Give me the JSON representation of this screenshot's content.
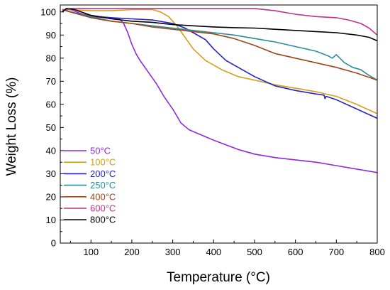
{
  "chart_data": {
    "type": "line",
    "title": "",
    "xlabel": "Temperature (°C)",
    "ylabel": "Weight Loss (%)",
    "xlim": [
      25,
      800
    ],
    "ylim": [
      0,
      103
    ],
    "x_ticks": [
      100,
      200,
      300,
      400,
      500,
      600,
      700,
      800
    ],
    "y_ticks": [
      0,
      10,
      20,
      30,
      40,
      50,
      60,
      70,
      80,
      90,
      100
    ],
    "grid": false,
    "legend_position": "lower-left",
    "series": [
      {
        "name": "50°C",
        "color": "#8B2BE2",
        "x": [
          30,
          50,
          80,
          120,
          150,
          170,
          180,
          190,
          200,
          210,
          220,
          240,
          260,
          280,
          300,
          320,
          330,
          340,
          360,
          380,
          400,
          430,
          460,
          500,
          550,
          600,
          650,
          700,
          750,
          800
        ],
        "y": [
          101,
          101,
          99,
          98,
          97.5,
          97,
          95,
          91,
          86,
          82,
          79,
          74,
          69,
          63,
          58,
          52,
          50.5,
          49,
          47.5,
          46,
          44.5,
          42.5,
          40.5,
          38.5,
          37,
          36,
          35,
          33.5,
          32,
          30.5
        ]
      },
      {
        "name": "100°C",
        "color": "#D4A017",
        "x": [
          30,
          50,
          100,
          150,
          200,
          250,
          270,
          290,
          310,
          330,
          350,
          380,
          420,
          460,
          500,
          550,
          600,
          650,
          700,
          750,
          800
        ],
        "y": [
          101,
          101,
          100.5,
          100.5,
          101,
          101,
          100,
          98,
          94,
          89,
          84,
          79,
          75,
          72,
          70.5,
          68.5,
          67,
          65.5,
          63.5,
          60,
          56
        ]
      },
      {
        "name": "200°C",
        "color": "#2323C8",
        "x": [
          30,
          50,
          100,
          150,
          200,
          250,
          300,
          330,
          350,
          380,
          400,
          430,
          470,
          500,
          550,
          600,
          650,
          670,
          672,
          675,
          700,
          750,
          800
        ],
        "y": [
          101,
          100,
          98,
          97.5,
          97,
          96.5,
          95,
          93,
          91,
          88,
          84,
          79,
          75,
          72,
          68,
          66,
          64.5,
          64,
          62.5,
          63.5,
          62,
          58,
          54
        ]
      },
      {
        "name": "250°C",
        "color": "#2A8C9A",
        "x": [
          30,
          50,
          100,
          150,
          200,
          250,
          300,
          350,
          400,
          450,
          500,
          550,
          600,
          650,
          680,
          690,
          700,
          720,
          740,
          760,
          780,
          800
        ],
        "y": [
          101,
          100,
          98,
          96,
          95,
          94,
          93,
          92,
          91,
          90,
          88.5,
          87,
          85,
          83,
          81,
          80,
          81.5,
          78,
          76,
          75,
          72.5,
          70.5
        ]
      },
      {
        "name": "400°C",
        "color": "#A0451A",
        "x": [
          30,
          50,
          100,
          150,
          200,
          250,
          300,
          350,
          400,
          450,
          500,
          550,
          600,
          650,
          700,
          750,
          800
        ],
        "y": [
          101,
          100,
          97.5,
          96,
          95,
          93.5,
          92.5,
          91.5,
          90.5,
          88.5,
          85.5,
          82,
          80,
          78,
          76,
          73.5,
          70.5
        ]
      },
      {
        "name": "600°C",
        "color": "#C0338A",
        "x": [
          30,
          50,
          100,
          150,
          200,
          250,
          300,
          350,
          400,
          450,
          500,
          550,
          600,
          650,
          700,
          730,
          760,
          780,
          800
        ],
        "y": [
          100.5,
          101.5,
          101.5,
          101.5,
          101.5,
          101.5,
          101.5,
          101.5,
          101.5,
          101.5,
          101.5,
          100.5,
          99,
          98,
          97.5,
          96.5,
          95,
          93,
          90
        ]
      },
      {
        "name": "800°C",
        "color": "#000000",
        "x": [
          30,
          40,
          60,
          100,
          150,
          200,
          250,
          300,
          350,
          400,
          450,
          500,
          550,
          600,
          650,
          700,
          750,
          780,
          800
        ],
        "y": [
          100,
          101.5,
          101,
          98.5,
          97,
          96,
          95.5,
          94.5,
          94,
          93.5,
          93.2,
          93,
          92.5,
          92,
          91.5,
          91,
          90,
          89,
          87.5
        ]
      }
    ]
  }
}
